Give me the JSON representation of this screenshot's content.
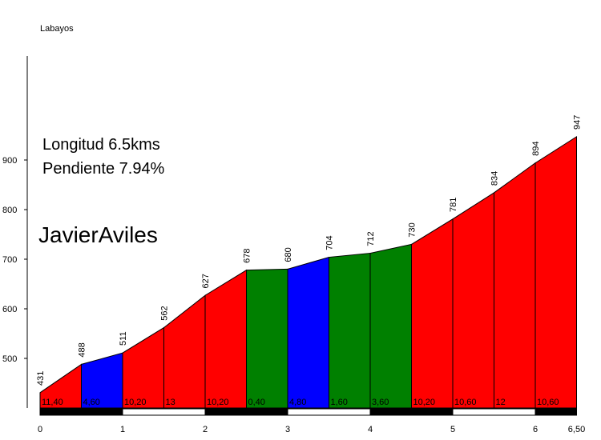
{
  "chart_data": {
    "type": "area",
    "title": "Labayos",
    "info": {
      "length": "Longitud 6.5kms",
      "gradient": "Pendiente 7.94%",
      "author": "JavierAviles"
    },
    "x_km": [
      0,
      0.5,
      1,
      1.5,
      2,
      2.5,
      3,
      3.5,
      4,
      4.5,
      5,
      5.5,
      6,
      6.5
    ],
    "elevations": [
      431,
      488,
      511,
      562,
      627,
      678,
      680,
      704,
      712,
      730,
      781,
      834,
      894,
      947
    ],
    "elevation_labels": [
      "431",
      "488",
      "511",
      "562",
      "627",
      "678",
      "680",
      "704",
      "712",
      "730",
      "781",
      "834",
      "894",
      "947"
    ],
    "segment_gradients": [
      "11,40",
      "4,60",
      "10,20",
      "13",
      "10,20",
      "0,40",
      "4,80",
      "1,60",
      "3,60",
      "10,20",
      "10,60",
      "12",
      "10,60"
    ],
    "segment_colors": [
      "#ff0000",
      "#0000ff",
      "#ff0000",
      "#ff0000",
      "#ff0000",
      "#008000",
      "#0000ff",
      "#008000",
      "#008000",
      "#ff0000",
      "#ff0000",
      "#ff0000",
      "#ff0000"
    ],
    "y_ticks": [
      "500",
      "600",
      "700",
      "800",
      "900"
    ],
    "x_ticks": [
      "0",
      "1",
      "2",
      "3",
      "4",
      "5",
      "6",
      "6,50"
    ],
    "x_tick_values": [
      0,
      1,
      2,
      3,
      4,
      5,
      6,
      6.5
    ],
    "y_tick_values": [
      500,
      600,
      700,
      800,
      900
    ],
    "colors": {
      "climb": "#ff0000",
      "moderate": "#0000ff",
      "easy": "#008000"
    }
  }
}
